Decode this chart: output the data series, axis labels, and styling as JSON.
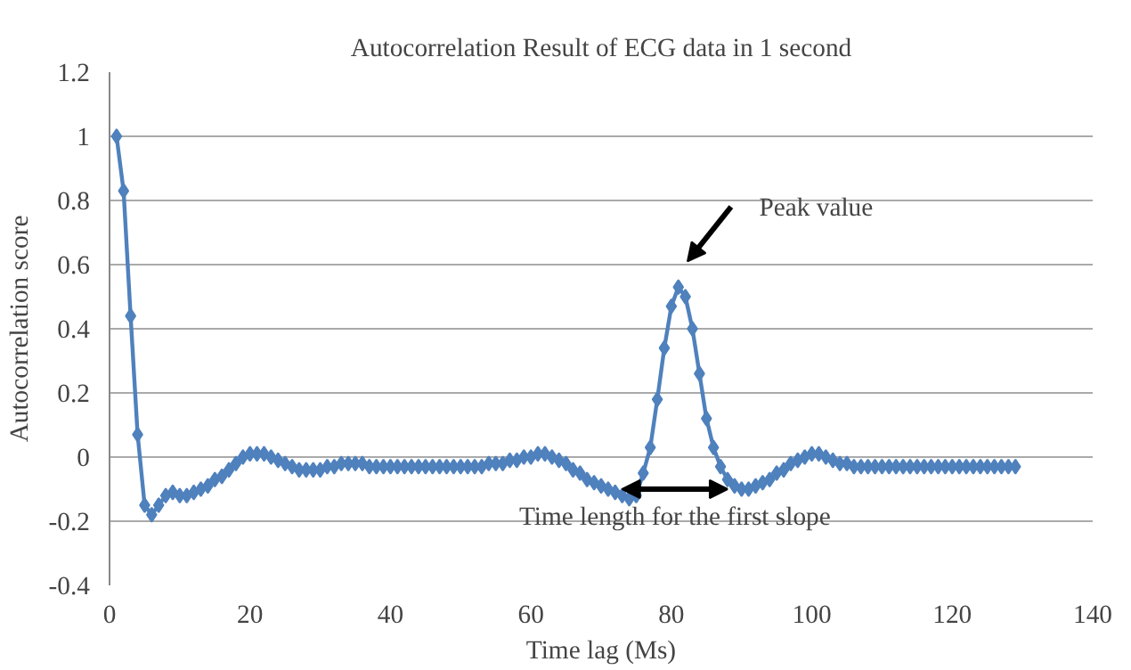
{
  "chart_data": {
    "type": "line",
    "title": "Autocorrelation Result of ECG data in 1 second",
    "xlabel": "Time lag (Ms)",
    "ylabel": "Autocorrelation score",
    "x": [
      1,
      2,
      3,
      4,
      5,
      6,
      7,
      8,
      9,
      10,
      11,
      12,
      13,
      14,
      15,
      16,
      17,
      18,
      19,
      20,
      21,
      22,
      23,
      24,
      25,
      26,
      27,
      28,
      29,
      30,
      31,
      32,
      33,
      34,
      35,
      36,
      37,
      38,
      39,
      40,
      41,
      42,
      43,
      44,
      45,
      46,
      47,
      48,
      49,
      50,
      51,
      52,
      53,
      54,
      55,
      56,
      57,
      58,
      59,
      60,
      61,
      62,
      63,
      64,
      65,
      66,
      67,
      68,
      69,
      70,
      71,
      72,
      73,
      74,
      75,
      76,
      77,
      78,
      79,
      80,
      81,
      82,
      83,
      84,
      85,
      86,
      87,
      88,
      89,
      90,
      91,
      92,
      93,
      94,
      95,
      96,
      97,
      98,
      99,
      100,
      101,
      102,
      103,
      104,
      105,
      106,
      107,
      108,
      109,
      110,
      111,
      112,
      113,
      114,
      115,
      116,
      117,
      118,
      119,
      120,
      121,
      122,
      123,
      124,
      125,
      126,
      127,
      128,
      129
    ],
    "series": [
      {
        "color": "#4f81bd",
        "values": [
          1,
          0.83,
          0.44,
          0.07,
          -0.15,
          -0.18,
          -0.15,
          -0.12,
          -0.11,
          -0.12,
          -0.12,
          -0.11,
          -0.1,
          -0.09,
          -0.07,
          -0.06,
          -0.04,
          -0.02,
          0,
          0.01,
          0.01,
          0.01,
          0,
          -0.01,
          -0.02,
          -0.03,
          -0.04,
          -0.04,
          -0.04,
          -0.04,
          -0.03,
          -0.03,
          -0.02,
          -0.02,
          -0.02,
          -0.02,
          -0.03,
          -0.03,
          -0.03,
          -0.03,
          -0.03,
          -0.03,
          -0.03,
          -0.03,
          -0.03,
          -0.03,
          -0.03,
          -0.03,
          -0.03,
          -0.03,
          -0.03,
          -0.03,
          -0.03,
          -0.02,
          -0.02,
          -0.02,
          -0.01,
          -0.01,
          0,
          0,
          0.01,
          0.01,
          0,
          -0.01,
          -0.02,
          -0.04,
          -0.05,
          -0.07,
          -0.08,
          -0.09,
          -0.1,
          -0.11,
          -0.12,
          -0.13,
          -0.12,
          -0.05,
          0.03,
          0.18,
          0.34,
          0.47,
          0.53,
          0.5,
          0.4,
          0.26,
          0.12,
          0.03,
          -0.03,
          -0.07,
          -0.09,
          -0.1,
          -0.1,
          -0.09,
          -0.08,
          -0.07,
          -0.05,
          -0.04,
          -0.02,
          -0.01,
          0,
          0.01,
          0.01,
          0,
          -0.01,
          -0.02,
          -0.02,
          -0.03,
          -0.03,
          -0.03,
          -0.03,
          -0.03,
          -0.03,
          -0.03,
          -0.03,
          -0.03,
          -0.03,
          -0.03,
          -0.03,
          -0.03,
          -0.03,
          -0.03,
          -0.03,
          -0.03,
          -0.03,
          -0.03,
          -0.03,
          -0.03,
          -0.03,
          -0.03,
          -0.03
        ]
      }
    ],
    "xlim": [
      0,
      140
    ],
    "xticks": [
      0,
      20,
      40,
      60,
      80,
      100,
      120,
      140
    ],
    "ylim": [
      -0.4,
      1.2
    ],
    "yticks": [
      {
        "value": -0.4,
        "label": "-0.4"
      },
      {
        "value": -0.2,
        "label": "-0.2"
      },
      {
        "value": 0,
        "label": "0"
      },
      {
        "value": 0.2,
        "label": "0.2"
      },
      {
        "value": 0.4,
        "label": "0.4"
      },
      {
        "value": 0.6,
        "label": "0.6"
      },
      {
        "value": 0.8,
        "label": "0.8"
      },
      {
        "value": 1,
        "label": "1"
      },
      {
        "value": 1.2,
        "label": "1.2"
      }
    ],
    "grid": "y",
    "marker": "diamond",
    "line_style": "solid",
    "annotations": [
      "Peak value",
      "Time length for the first slope"
    ]
  }
}
